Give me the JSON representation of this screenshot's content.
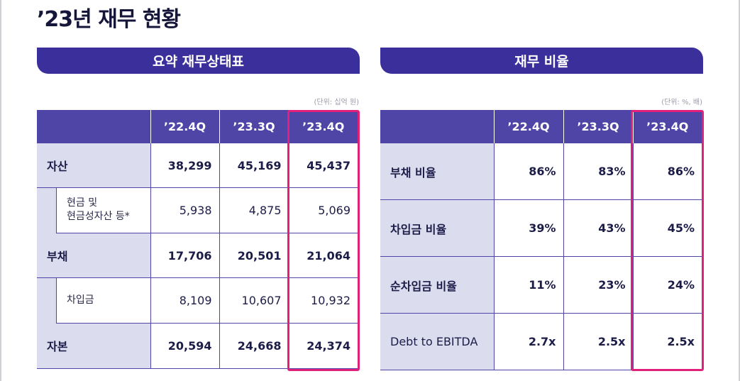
{
  "title": "’23년 재무 현황",
  "left": {
    "header": "요약 재무상태표",
    "unit": "(단위: 십억 원)",
    "columns": [
      "’22.4Q",
      "’23.3Q",
      "’23.4Q"
    ],
    "rows": [
      {
        "label": "자산",
        "values": [
          "38,299",
          "45,169",
          "45,437"
        ]
      },
      {
        "label": "현금 및",
        "label2": "현금성자산 등*",
        "values": [
          "5,938",
          "4,875",
          "5,069"
        ]
      },
      {
        "label": "부채",
        "values": [
          "17,706",
          "20,501",
          "21,064"
        ]
      },
      {
        "label": "차입금",
        "values": [
          "8,109",
          "10,607",
          "10,932"
        ]
      },
      {
        "label": "자본",
        "values": [
          "20,594",
          "24,668",
          "24,374"
        ]
      }
    ]
  },
  "right": {
    "header": "재무 비율",
    "unit": "(단위: %, 배)",
    "columns": [
      "’22.4Q",
      "’23.3Q",
      "’23.4Q"
    ],
    "rows": [
      {
        "label": "부채 비율",
        "values": [
          "86%",
          "83%",
          "86%"
        ]
      },
      {
        "label": "차입금 비율",
        "values": [
          "39%",
          "43%",
          "45%"
        ]
      },
      {
        "label": "순차입금 비율",
        "values": [
          "11%",
          "23%",
          "24%"
        ]
      },
      {
        "label": "Debt to EBITDA",
        "values": [
          "2.7x",
          "2.5x",
          "2.5x"
        ]
      }
    ]
  },
  "colors": {
    "header_bg": "#3b309b",
    "table_head": "#4f45a6",
    "label_bg": "#dcdcef",
    "highlight": "#e0207a"
  }
}
